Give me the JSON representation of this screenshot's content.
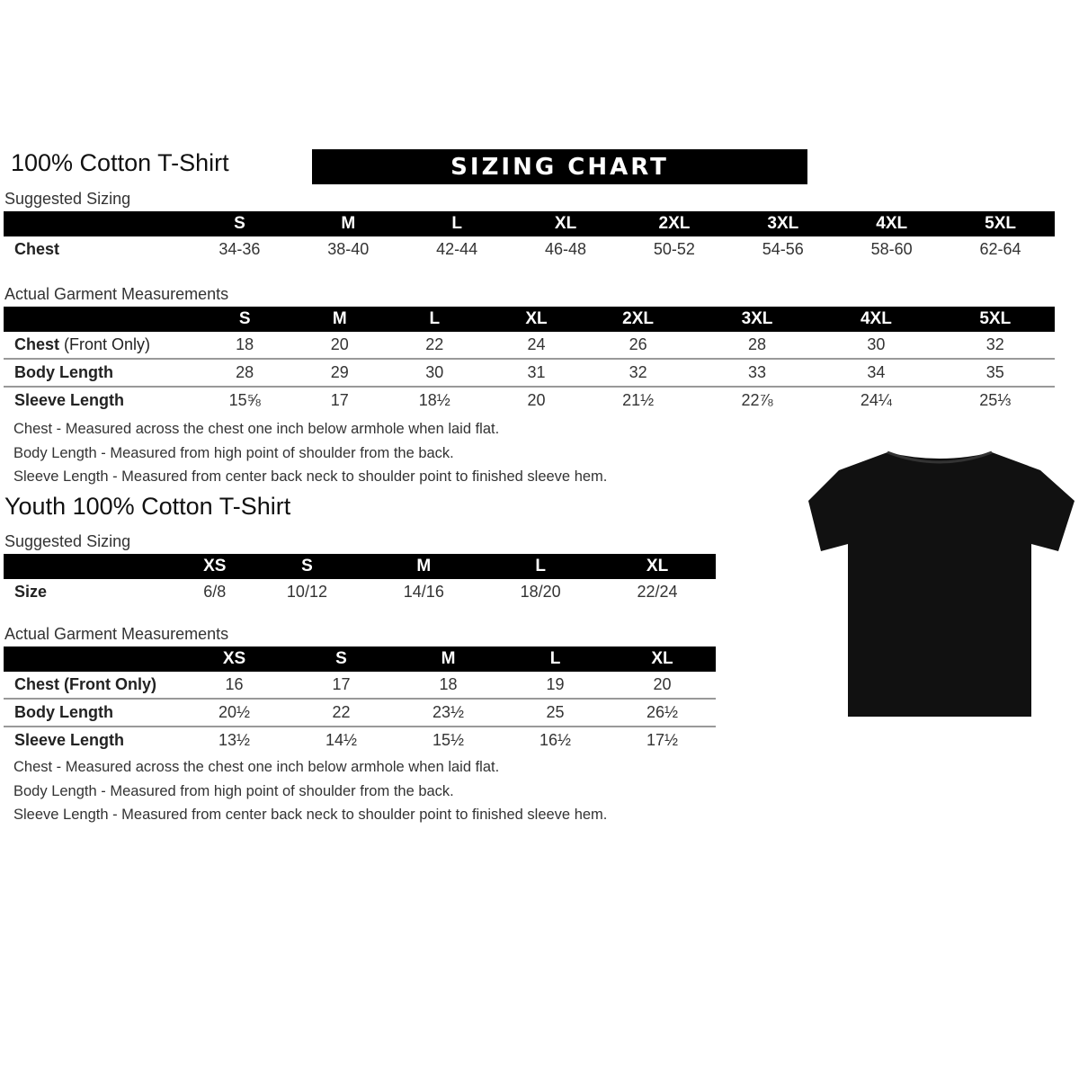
{
  "adult": {
    "title": "100% Cotton T-Shirt",
    "banner": "SIZING CHART",
    "suggested_label": "Suggested Sizing",
    "sizes": [
      "S",
      "M",
      "L",
      "XL",
      "2XL",
      "3XL",
      "4XL",
      "5XL"
    ],
    "suggested_rows": [
      {
        "label": "Chest",
        "values": [
          "34-36",
          "38-40",
          "42-44",
          "46-48",
          "50-52",
          "54-56",
          "58-60",
          "62-64"
        ]
      }
    ],
    "actual_label": "Actual Garment Measurements",
    "actual_rows": [
      {
        "label": "Chest",
        "label_suffix": " (Front Only)",
        "values": [
          "18",
          "20",
          "22",
          "24",
          "26",
          "28",
          "30",
          "32"
        ]
      },
      {
        "label": "Body Length",
        "label_suffix": "",
        "values": [
          "28",
          "29",
          "30",
          "31",
          "32",
          "33",
          "34",
          "35"
        ]
      },
      {
        "label": "Sleeve Length",
        "label_suffix": "",
        "values": [
          "15⅝",
          "17",
          "18½",
          "20",
          "21½",
          "22⅞",
          "24¼",
          "25⅓"
        ]
      }
    ],
    "notes": [
      "Chest - Measured across the chest one inch below armhole when laid flat.",
      "Body Length - Measured from high point of shoulder from the back.",
      "Sleeve Length - Measured from center back neck to shoulder point to finished sleeve hem."
    ]
  },
  "youth": {
    "title": "Youth 100% Cotton T-Shirt",
    "suggested_label": "Suggested Sizing",
    "sizes": [
      "XS",
      "S",
      "M",
      "L",
      "XL"
    ],
    "suggested_rows": [
      {
        "label": "Size",
        "values": [
          "6/8",
          "10/12",
          "14/16",
          "18/20",
          "22/24"
        ]
      }
    ],
    "actual_label": "Actual Garment Measurements",
    "actual_rows": [
      {
        "label": "Chest (Front Only)",
        "label_suffix": "",
        "values": [
          "16",
          "17",
          "18",
          "19",
          "20"
        ]
      },
      {
        "label": "Body Length",
        "label_suffix": "",
        "values": [
          "20½",
          "22",
          "23½",
          "25",
          "26½"
        ]
      },
      {
        "label": "Sleeve Length",
        "label_suffix": "",
        "values": [
          "13½",
          "14½",
          "15½",
          "16½",
          "17½"
        ]
      }
    ],
    "notes": [
      "Chest - Measured across the chest one inch below armhole when laid flat.",
      "Body Length - Measured from high point of shoulder from the back.",
      "Sleeve Length - Measured from center back neck to shoulder point to finished sleeve hem."
    ]
  },
  "shirt_color": "#111111"
}
